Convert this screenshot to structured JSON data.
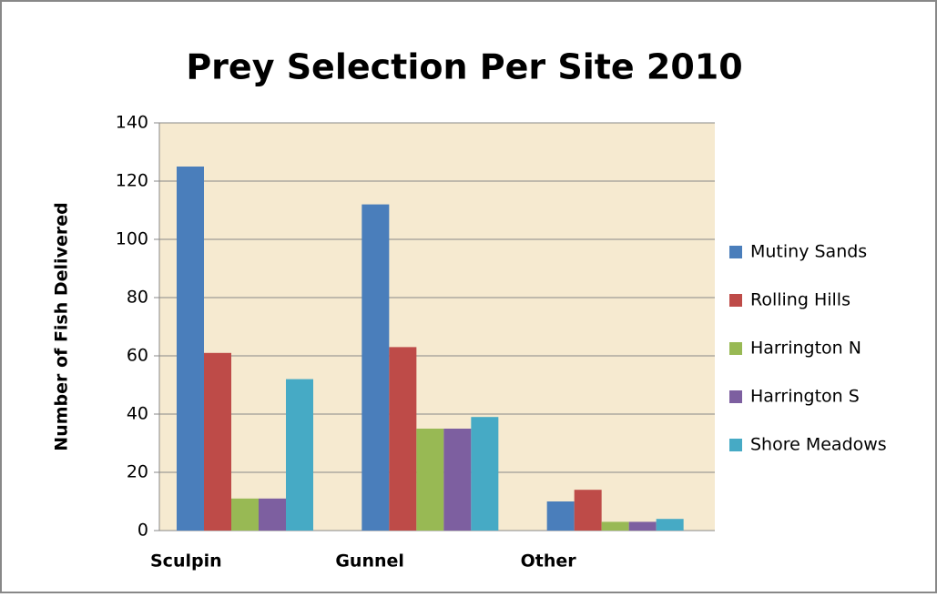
{
  "chart_data": {
    "type": "bar",
    "title": "Prey Selection Per Site 2010",
    "y_label": "Number of Fish Delivered",
    "categories": [
      "Sculpin",
      "Gunnel",
      "Other"
    ],
    "series": [
      {
        "name": "Mutiny Sands",
        "color": "#4a7ebb",
        "values": [
          125,
          112,
          10
        ]
      },
      {
        "name": "Rolling Hills",
        "color": "#be4b48",
        "values": [
          61,
          63,
          14
        ]
      },
      {
        "name": "Harrington N",
        "color": "#98b954",
        "values": [
          11,
          35,
          3
        ]
      },
      {
        "name": "Harrington S",
        "color": "#7d5fa0",
        "values": [
          11,
          35,
          3
        ]
      },
      {
        "name": "Shore Meadows",
        "color": "#46aac5",
        "values": [
          52,
          39,
          4
        ]
      }
    ],
    "ylim": [
      0,
      140
    ],
    "yticks": [
      0,
      20,
      40,
      60,
      80,
      100,
      120,
      140
    ],
    "grid": true,
    "legend": "right"
  }
}
